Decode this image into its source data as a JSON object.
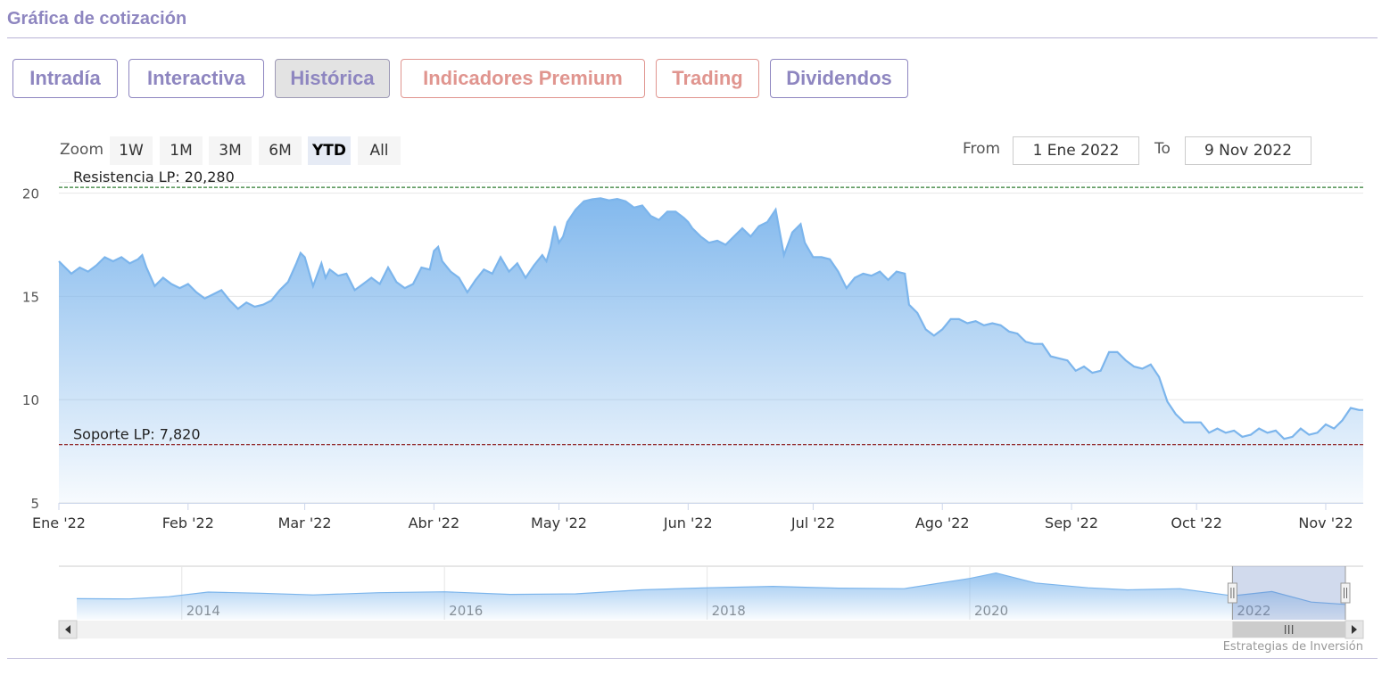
{
  "page": {
    "section_title": "Gráfica de cotización"
  },
  "tabs": [
    {
      "label": "Intradía",
      "kind": "normal",
      "active": false
    },
    {
      "label": "Interactiva",
      "kind": "normal",
      "active": false
    },
    {
      "label": "Histórica",
      "kind": "normal",
      "active": true
    },
    {
      "label": "Indicadores Premium",
      "kind": "premium",
      "active": false
    },
    {
      "label": "Trading",
      "kind": "premium",
      "active": false
    },
    {
      "label": "Dividendos",
      "kind": "normal",
      "active": false
    }
  ],
  "zoom": {
    "label": "Zoom",
    "buttons": [
      "1W",
      "1M",
      "3M",
      "6M",
      "YTD",
      "All"
    ],
    "selected": "YTD"
  },
  "range": {
    "from_label": "From",
    "from_value": "1 Ene 2022",
    "to_label": "To",
    "to_value": "9 Nov 2022"
  },
  "colors": {
    "accent": "#8e86c0",
    "premium": "#e0958f",
    "series_line": "#7cb5ec",
    "resistance_line": "#2e7d32",
    "support_line": "#8b1a1a"
  },
  "chart_data": {
    "type": "area",
    "title": "",
    "xlabel": "",
    "ylabel": "",
    "ylim": [
      5,
      20.5
    ],
    "yticks": [
      5,
      10,
      15,
      20
    ],
    "grid": true,
    "x_tick_labels": [
      "Ene '22",
      "Feb '22",
      "Mar '22",
      "Abr '22",
      "May '22",
      "Jun '22",
      "Jul '22",
      "Ago '22",
      "Sep '22",
      "Oct '22",
      "Nov '22"
    ],
    "x_tick_days": [
      0,
      31,
      59,
      90,
      120,
      151,
      181,
      212,
      243,
      273,
      304
    ],
    "x_end_day": 313,
    "x": [
      0,
      3,
      5,
      7,
      9,
      11,
      13,
      15,
      17,
      19,
      20,
      21,
      23,
      25,
      27,
      29,
      31,
      33,
      35,
      37,
      39,
      41,
      43,
      45,
      47,
      49,
      51,
      53,
      55,
      57,
      58,
      59,
      61,
      63,
      64,
      65,
      67,
      69,
      71,
      73,
      75,
      77,
      79,
      81,
      83,
      85,
      87,
      89,
      90,
      91,
      92,
      94,
      96,
      98,
      100,
      102,
      104,
      106,
      108,
      110,
      112,
      114,
      116,
      117,
      118,
      119,
      120,
      121,
      122,
      124,
      126,
      128,
      130,
      132,
      134,
      136,
      138,
      140,
      142,
      144,
      146,
      148,
      150,
      151,
      152,
      154,
      156,
      158,
      160,
      162,
      164,
      166,
      168,
      170,
      172,
      174,
      176,
      178,
      179,
      181,
      183,
      185,
      187,
      189,
      191,
      193,
      195,
      197,
      199,
      201,
      203,
      204,
      206,
      208,
      210,
      212,
      214,
      216,
      218,
      220,
      222,
      224,
      226,
      228,
      230,
      232,
      234,
      236,
      238,
      240,
      242,
      244,
      246,
      248,
      250,
      252,
      254,
      256,
      258,
      260,
      262,
      264,
      266,
      268,
      270,
      272,
      274,
      276,
      278,
      280,
      282,
      284,
      286,
      288,
      290,
      292,
      294,
      296,
      298,
      300,
      302,
      304,
      306,
      308,
      310,
      312,
      313
    ],
    "series": [
      {
        "values": [
          16.7,
          16.1,
          16.4,
          16.2,
          16.5,
          16.9,
          16.7,
          16.9,
          16.6,
          16.8,
          17.0,
          16.4,
          15.5,
          15.9,
          15.6,
          15.4,
          15.6,
          15.2,
          14.9,
          15.1,
          15.3,
          14.8,
          14.4,
          14.7,
          14.5,
          14.6,
          14.8,
          15.3,
          15.7,
          16.6,
          17.1,
          16.9,
          15.5,
          16.6,
          15.9,
          16.3,
          16.0,
          16.1,
          15.3,
          15.6,
          15.9,
          15.6,
          16.4,
          15.7,
          15.4,
          15.6,
          16.4,
          16.3,
          17.2,
          17.4,
          16.7,
          16.2,
          15.9,
          15.2,
          15.8,
          16.3,
          16.1,
          16.9,
          16.2,
          16.6,
          15.9,
          16.5,
          17.0,
          16.7,
          17.4,
          18.4,
          17.6,
          17.9,
          18.6,
          19.2,
          19.6,
          19.7,
          19.75,
          19.65,
          19.72,
          19.6,
          19.3,
          19.4,
          18.9,
          18.7,
          19.1,
          19.1,
          18.8,
          18.6,
          18.3,
          17.9,
          17.6,
          17.7,
          17.5,
          17.9,
          18.3,
          17.9,
          18.4,
          18.6,
          19.2,
          17.0,
          18.1,
          18.5,
          17.6,
          16.9,
          16.9,
          16.8,
          16.2,
          15.4,
          15.9,
          16.1,
          16.0,
          16.2,
          15.8,
          16.2,
          16.1,
          14.6,
          14.2,
          13.4,
          13.1,
          13.4,
          13.9,
          13.9,
          13.7,
          13.8,
          13.6,
          13.7,
          13.6,
          13.3,
          13.2,
          12.8,
          12.7,
          12.7,
          12.1,
          12.0,
          11.9,
          11.4,
          11.6,
          11.3,
          11.4,
          12.3,
          12.3,
          11.9,
          11.6,
          11.5,
          11.7,
          11.1,
          9.9,
          9.3,
          8.9,
          8.9,
          8.9,
          8.4,
          8.6,
          8.4,
          8.5,
          8.2,
          8.3,
          8.6,
          8.4,
          8.5,
          8.1,
          8.2,
          8.6,
          8.3,
          8.4,
          8.8,
          8.6,
          9.0,
          9.6,
          9.5,
          9.5
        ]
      }
    ],
    "annotations": [
      {
        "label": "Resistencia LP: 20,280",
        "value": 20.28,
        "color": "#2e7d32"
      },
      {
        "label": "Soporte LP: 7,820",
        "value": 7.82,
        "color": "#8b1a1a"
      }
    ],
    "navigator": {
      "x_labels": [
        "2014",
        "2016",
        "2018",
        "2020",
        "2022"
      ],
      "label_years": [
        2014,
        2016,
        2018,
        2020,
        2022
      ],
      "year_start": 2013.2,
      "year_end": 2022.86,
      "selected_range": [
        2022.0,
        2022.86
      ],
      "history_years": [
        2013.2,
        2013.6,
        2013.9,
        2014.2,
        2014.6,
        2015.0,
        2015.5,
        2016.0,
        2016.5,
        2017.0,
        2017.5,
        2018.0,
        2018.5,
        2019.0,
        2019.5,
        2020.0,
        2020.2,
        2020.5,
        2020.9,
        2021.2,
        2021.6,
        2022.0,
        2022.3,
        2022.6,
        2022.86
      ],
      "history_values": [
        10.5,
        10.4,
        11.2,
        12.8,
        12.4,
        11.8,
        12.6,
        12.9,
        12.0,
        12.2,
        13.6,
        14.3,
        14.8,
        14.2,
        14.0,
        17.6,
        19.5,
        16.0,
        14.3,
        13.6,
        14.0,
        11.5,
        13.0,
        9.3,
        8.5
      ]
    }
  },
  "credits": "Estrategias de Inversión"
}
